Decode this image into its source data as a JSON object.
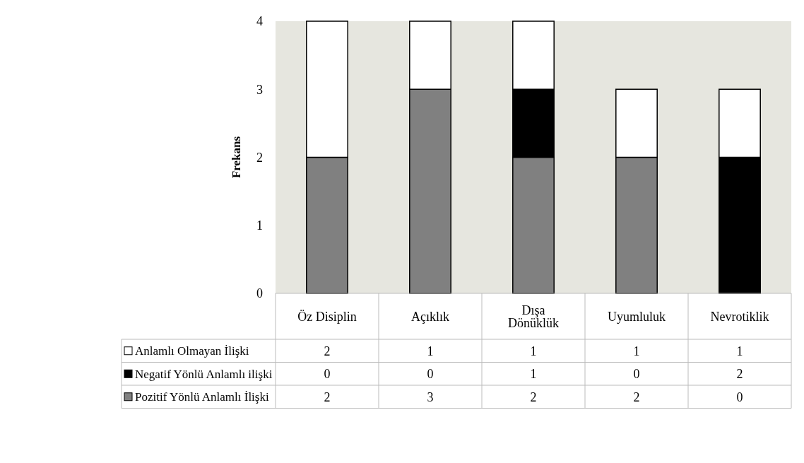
{
  "chart_data": {
    "type": "bar",
    "stacked": true,
    "ylabel": "Frekans",
    "categories": [
      "Öz Disiplin",
      "Açıklık",
      "Dışa Dönüklük",
      "Uyumluluk",
      "Nevrotiklik"
    ],
    "series": [
      {
        "name": "Pozitif Yönlü Anlamlı İlişki",
        "color": "#808080",
        "values": [
          2,
          3,
          2,
          2,
          0
        ]
      },
      {
        "name": "Negatif Yönlü Anlamlı ilişki",
        "color": "#000000",
        "values": [
          0,
          0,
          1,
          0,
          2
        ]
      },
      {
        "name": "Anlamlı Olmayan İlişki",
        "color": "#ffffff",
        "values": [
          2,
          1,
          1,
          1,
          1
        ]
      }
    ],
    "ylim": [
      0,
      4
    ],
    "yticks": [
      0,
      1,
      2,
      3,
      4
    ],
    "grid": false,
    "legend": "bottom",
    "data_labels": true
  }
}
